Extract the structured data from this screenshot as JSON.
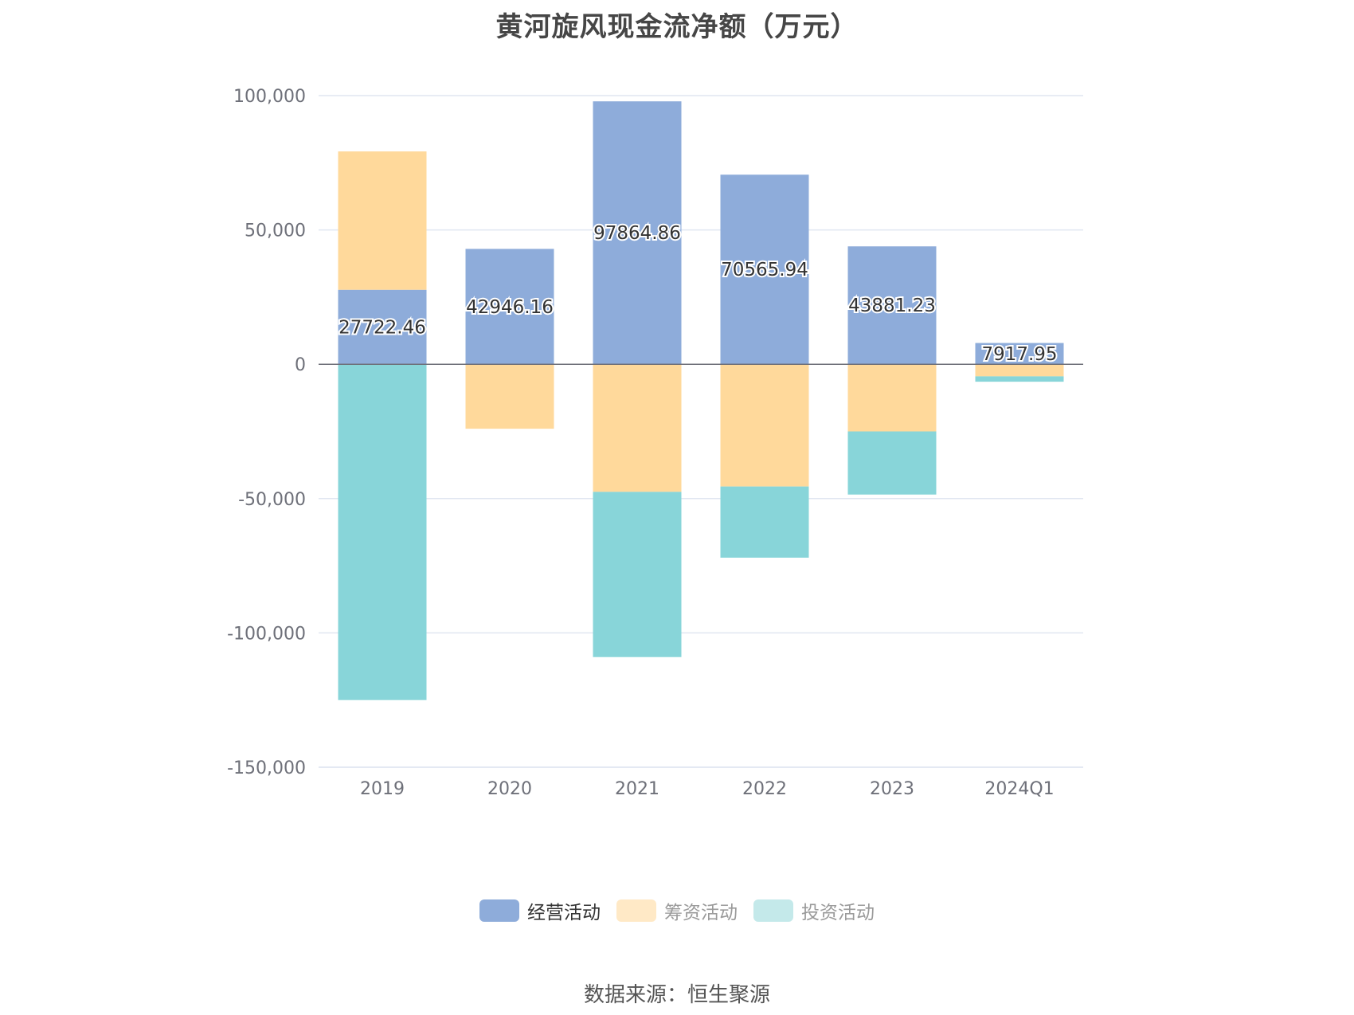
{
  "chart_data": {
    "type": "bar",
    "stacked": true,
    "title": "黄河旋风现金流净额（万元）",
    "xlabel": "",
    "ylabel": "",
    "ylim": [
      -150000,
      100000
    ],
    "y_ticks": [
      100000,
      50000,
      0,
      -50000,
      -100000,
      -150000
    ],
    "y_tick_labels": [
      "100,000",
      "50,000",
      "0",
      "-50,000",
      "-100,000",
      "-150,000"
    ],
    "categories": [
      "2019",
      "2020",
      "2021",
      "2022",
      "2023",
      "2024Q1"
    ],
    "series": [
      {
        "name": "经营活动",
        "color": "#8eacda",
        "values": [
          27722.46,
          42946.16,
          97864.86,
          70565.94,
          43881.23,
          7917.95
        ],
        "labels": [
          "27722.46",
          "42946.16",
          "97864.86",
          "70565.94",
          "43881.23",
          "7917.95"
        ]
      },
      {
        "name": "筹资活动",
        "color": "#ffd99b",
        "values": [
          51500,
          -24000,
          -47500,
          -45500,
          -25000,
          -4500
        ]
      },
      {
        "name": "投资活动",
        "color": "#88d5d9",
        "values": [
          -125000,
          0,
          -61500,
          -26500,
          -23500,
          -2000
        ]
      }
    ],
    "legend_colors": [
      "#8eacda",
      "#ffe9c6",
      "#c4e9ea"
    ],
    "legend_position": "bottom",
    "grid": true
  },
  "source_text": "数据来源：恒生聚源"
}
